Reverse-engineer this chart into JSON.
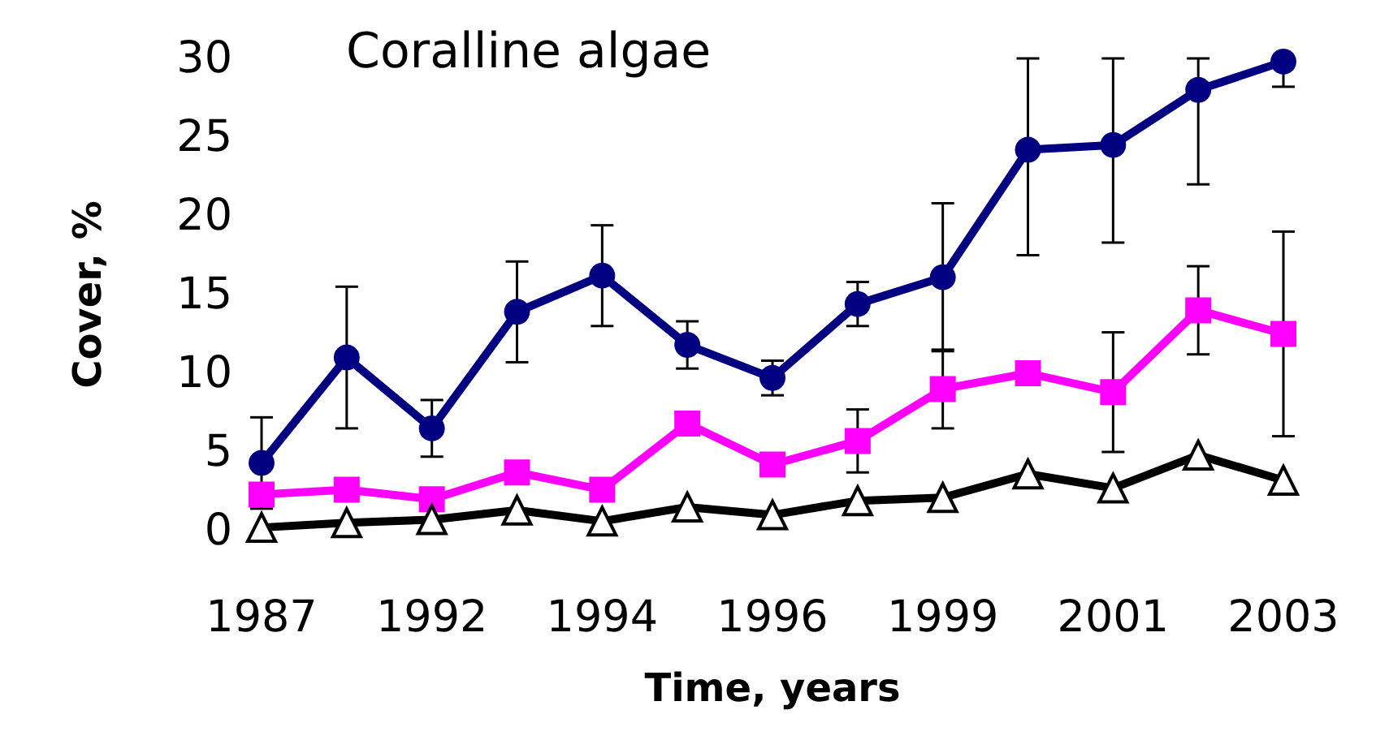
{
  "chart_data": {
    "type": "line",
    "title": "Coralline algae",
    "xlabel": "Time, years",
    "ylabel": "Cover, %",
    "categories": [
      "1987",
      null,
      "1992",
      null,
      "1994",
      null,
      "1996",
      null,
      "1999",
      null,
      "2001",
      null,
      "2003"
    ],
    "ylim": [
      0,
      30
    ],
    "yticks": [
      0,
      5,
      10,
      15,
      20,
      25,
      30
    ],
    "line_style": "solid",
    "series": [
      {
        "color": "#000080",
        "marker": "circle",
        "values": [
          4.3,
          11.0,
          6.5,
          13.9,
          16.2,
          11.8,
          9.7,
          14.4,
          16.1,
          24.2,
          24.5,
          28.0,
          29.8
        ],
        "errors": [
          2.9,
          4.5,
          1.8,
          3.2,
          3.2,
          1.5,
          1.1,
          1.4,
          4.7,
          [
            17.5,
            30
          ],
          [
            18.3,
            30
          ],
          [
            22,
            30
          ],
          [
            28.2,
            30
          ]
        ]
      },
      {
        "color": "#ff00ff",
        "marker": "square",
        "values": [
          2.3,
          2.6,
          2.0,
          3.7,
          2.6,
          6.8,
          4.2,
          5.7,
          9.0,
          10.0,
          8.8,
          14.0,
          12.5
        ],
        "errors": [
          null,
          null,
          null,
          null,
          null,
          null,
          null,
          2.0,
          2.5,
          null,
          3.8,
          2.8,
          6.5
        ]
      },
      {
        "color": "#000000",
        "marker": "triangle",
        "values": [
          0.2,
          0.5,
          0.7,
          1.3,
          0.6,
          1.5,
          1.0,
          1.9,
          2.1,
          3.6,
          2.7,
          4.8,
          3.2
        ]
      }
    ]
  }
}
